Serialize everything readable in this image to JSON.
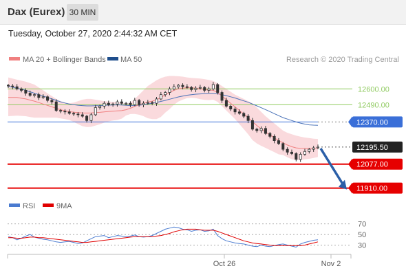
{
  "header": {
    "title": "Dax (Eurex)",
    "timeframe": "30 MIN"
  },
  "timestamp": "Tuesday, October 27, 2020 2:44:32 AM CET",
  "legend": [
    {
      "label": "MA 20 + Bollinger Bands",
      "color": "#f08080"
    },
    {
      "label": "MA 50",
      "color": "#1f4e8c"
    }
  ],
  "credit": "Research © 2020 Trading Central",
  "rsi_legend": [
    {
      "label": "RSI",
      "color": "#4a7bd0"
    },
    {
      "label": "9MA",
      "color": "#e00000"
    }
  ],
  "colors": {
    "up": "#ffffff",
    "down": "#333333",
    "band": "#fadadd",
    "ma20": "#f08080",
    "ma50": "#4a72b8",
    "resistance": "#8fca5f",
    "pivot": "#3a6fd8",
    "support": "#e60000",
    "last": "#222222",
    "arrow": "#2b5fa8"
  },
  "chart_data": [
    {
      "type": "candlestick",
      "x_ticks": [
        "Oct 26",
        "Nov 2"
      ],
      "ylim": [
        11870,
        12740
      ],
      "closes": [
        12620,
        12615,
        12600,
        12590,
        12570,
        12555,
        12560,
        12540,
        12545,
        12520,
        12510,
        12450,
        12445,
        12440,
        12430,
        12425,
        12420,
        12410,
        12380,
        12420,
        12470,
        12480,
        12500,
        12490,
        12495,
        12510,
        12500,
        12500,
        12490,
        12520,
        12490,
        12500,
        12505,
        12500,
        12530,
        12560,
        12575,
        12600,
        12615,
        12625,
        12615,
        12610,
        12595,
        12605,
        12610,
        12590,
        12600,
        12630,
        12575,
        12520,
        12480,
        12460,
        12440,
        12430,
        12410,
        12380,
        12320,
        12310,
        12325,
        12290,
        12270,
        12240,
        12220,
        12180,
        12160,
        12150,
        12110,
        12145,
        12165,
        12180,
        12190,
        12195
      ],
      "ma20": [
        12540,
        12540,
        12540,
        12535,
        12530,
        12522,
        12515,
        12505,
        12495,
        12485,
        12475,
        12465,
        12455,
        12448,
        12442,
        12438,
        12435,
        12433,
        12432,
        12433,
        12435,
        12437,
        12440,
        12443,
        12445,
        12447,
        12449,
        12455,
        12465,
        12478,
        12490,
        12500,
        12508,
        12515,
        12525,
        12540,
        12560,
        12575,
        12590,
        12600,
        12605,
        12608,
        12607,
        12605,
        12600,
        12596,
        12592,
        12590,
        12575,
        12550,
        12525,
        12500,
        12475,
        12450,
        12425,
        12400,
        12372,
        12345,
        12322,
        12300,
        12280,
        12260,
        12240,
        12225,
        12210,
        12198,
        12190,
        12187,
        12186,
        12186,
        12187,
        12189
      ],
      "band_upper": [
        12680,
        12672,
        12664,
        12658,
        12650,
        12640,
        12630,
        12610,
        12590,
        12570,
        12550,
        12530,
        12515,
        12505,
        12500,
        12505,
        12515,
        12525,
        12530,
        12530,
        12525,
        12520,
        12515,
        12512,
        12510,
        12510,
        12505,
        12495,
        12505,
        12530,
        12560,
        12590,
        12620,
        12640,
        12660,
        12675,
        12685,
        12690,
        12690,
        12688,
        12685,
        12680,
        12676,
        12674,
        12672,
        12668,
        12662,
        12655,
        12640,
        12620,
        12600,
        12580,
        12560,
        12545,
        12530,
        12515,
        12500,
        12470,
        12440,
        12410,
        12385,
        12360,
        12335,
        12310,
        12295,
        12285,
        12275,
        12268,
        12262,
        12258,
        12254,
        12252
      ],
      "band_lower": [
        12410,
        12412,
        12414,
        12412,
        12410,
        12404,
        12400,
        12400,
        12400,
        12400,
        12400,
        12400,
        12395,
        12390,
        12384,
        12371,
        12355,
        12341,
        12334,
        12336,
        12345,
        12354,
        12365,
        12374,
        12380,
        12384,
        12393,
        12415,
        12425,
        12426,
        12420,
        12410,
        12396,
        12390,
        12390,
        12405,
        12435,
        12460,
        12490,
        12512,
        12525,
        12536,
        12538,
        12536,
        12528,
        12524,
        12522,
        12525,
        12510,
        12480,
        12450,
        12420,
        12390,
        12355,
        12320,
        12285,
        12244,
        12220,
        12204,
        12190,
        12175,
        12160,
        12145,
        12140,
        12125,
        12111,
        12105,
        12106,
        12110,
        12114,
        12120,
        12126
      ],
      "ma50": [
        12620,
        12612,
        12604,
        12598,
        12590,
        12580,
        12570,
        12560,
        12550,
        12540,
        12530,
        12520,
        12510,
        12502,
        12495,
        12490,
        12486,
        12484,
        12482,
        12482,
        12483,
        12484,
        12486,
        12487,
        12488,
        12489,
        12488,
        12486,
        12484,
        12484,
        12486,
        12490,
        12495,
        12500,
        12506,
        12513,
        12520,
        12528,
        12536,
        12544,
        12550,
        12556,
        12560,
        12563,
        12565,
        12567,
        12568,
        12568,
        12566,
        12560,
        12553,
        12545,
        12537,
        12527,
        12517,
        12507,
        12495,
        12482,
        12469,
        12456,
        12442,
        12428,
        12414,
        12400,
        12390,
        12380,
        12370,
        12362,
        12355,
        12350,
        12348,
        12347
      ],
      "levels": [
        {
          "label": "12600.00",
          "value": 12600,
          "kind": "resistance"
        },
        {
          "label": "12490.00",
          "value": 12490,
          "kind": "resistance"
        },
        {
          "label": "12370.00",
          "value": 12370,
          "kind": "pivot"
        },
        {
          "label": "12195.50",
          "value": 12195.5,
          "kind": "last"
        },
        {
          "label": "12077.00",
          "value": 12077,
          "kind": "support"
        },
        {
          "label": "11910.00",
          "value": 11910,
          "kind": "support"
        }
      ],
      "forecast_arrow": {
        "from": 12195.5,
        "to": 11910
      }
    },
    {
      "type": "line",
      "ylim": [
        15,
        80
      ],
      "y_ticks": [
        "70",
        "50",
        "30"
      ],
      "series": [
        {
          "name": "RSI",
          "values": [
            46,
            44,
            40,
            43,
            47,
            50,
            45,
            43,
            41,
            40,
            38,
            36,
            35,
            36,
            37,
            35,
            33,
            34,
            38,
            42,
            46,
            47,
            48,
            44,
            46,
            48,
            47,
            46,
            47,
            49,
            46,
            45,
            46,
            48,
            52,
            56,
            60,
            62,
            64,
            63,
            60,
            59,
            56,
            58,
            59,
            56,
            57,
            60,
            48,
            42,
            38,
            36,
            34,
            33,
            32,
            30,
            28,
            27,
            30,
            28,
            27,
            29,
            31,
            32,
            30,
            28,
            26,
            32,
            35,
            37,
            39,
            40
          ]
        },
        {
          "name": "9MA",
          "values": [
            44,
            44,
            43,
            43,
            44,
            45,
            45,
            44,
            44,
            43,
            42,
            41,
            40,
            39,
            38,
            37,
            36,
            35,
            35,
            36,
            37,
            38,
            39,
            40,
            41,
            42,
            43,
            44,
            45,
            46,
            46,
            46,
            46,
            46,
            47,
            48,
            50,
            52,
            55,
            57,
            59,
            60,
            60,
            60,
            59,
            58,
            58,
            58,
            56,
            53,
            50,
            47,
            44,
            41,
            38,
            36,
            34,
            33,
            32,
            31,
            30,
            29,
            29,
            29,
            29,
            29,
            29,
            29,
            30,
            32,
            34,
            36
          ]
        }
      ]
    }
  ]
}
